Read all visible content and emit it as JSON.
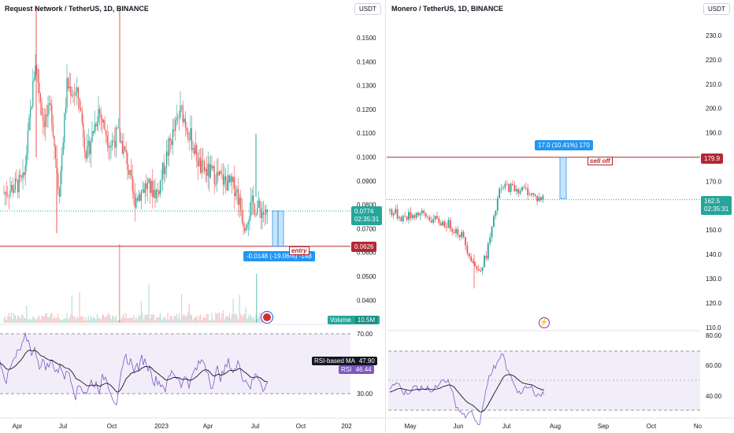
{
  "left": {
    "title": "Request Network / TetherUS, 1D, BINANCE",
    "currency": "USDT",
    "price_ticks": [
      "0.1500",
      "0.1400",
      "0.1300",
      "0.1200",
      "0.1100",
      "0.1000",
      "0.0900",
      "0.0800",
      "0.0700",
      "0.0600",
      "0.0500",
      "0.0400"
    ],
    "current_price": "0.0774",
    "countdown": "02:35:31",
    "entry_price": "0.0626",
    "measure_label": "-0.0148 (-19.06%) -148",
    "entry_label": "entry",
    "volume_label": "Volume",
    "volume_value": "10.5M",
    "rsi_ticks": [
      "70.00",
      "30.00"
    ],
    "rsi_ma_label": "RSI-based MA",
    "rsi_ma_value": "47.90",
    "rsi_label": "RSI",
    "rsi_value": "46.44",
    "time_ticks": [
      "Apr",
      "Jul",
      "Oct",
      "2023",
      "Apr",
      "Jul",
      "Oct",
      "202"
    ]
  },
  "right": {
    "title": "Monero / TetherUS, 1D, BINANCE",
    "currency": "USDT",
    "price_ticks": [
      "230.0",
      "220.0",
      "210.0",
      "200.0",
      "190.0",
      "180.0",
      "170.0",
      "160.0",
      "150.0",
      "140.0",
      "130.0",
      "120.0",
      "110.0"
    ],
    "current_price": "162.5",
    "countdown": "02:35:31",
    "target_price": "179.9",
    "measure_label": "17.0 (10.41%) 170",
    "sell_label": "sell off",
    "rsi_ticks": [
      "80.00",
      "60.00",
      "40.00"
    ],
    "time_ticks": [
      "May",
      "Jun",
      "Jul",
      "Aug",
      "Sep",
      "Oct",
      "No"
    ]
  },
  "colors": {
    "up": "#26a69a",
    "down": "#ef5350",
    "rsi": "#7e57c2",
    "accent_blue": "#2196f3",
    "line_red": "#b22833"
  }
}
